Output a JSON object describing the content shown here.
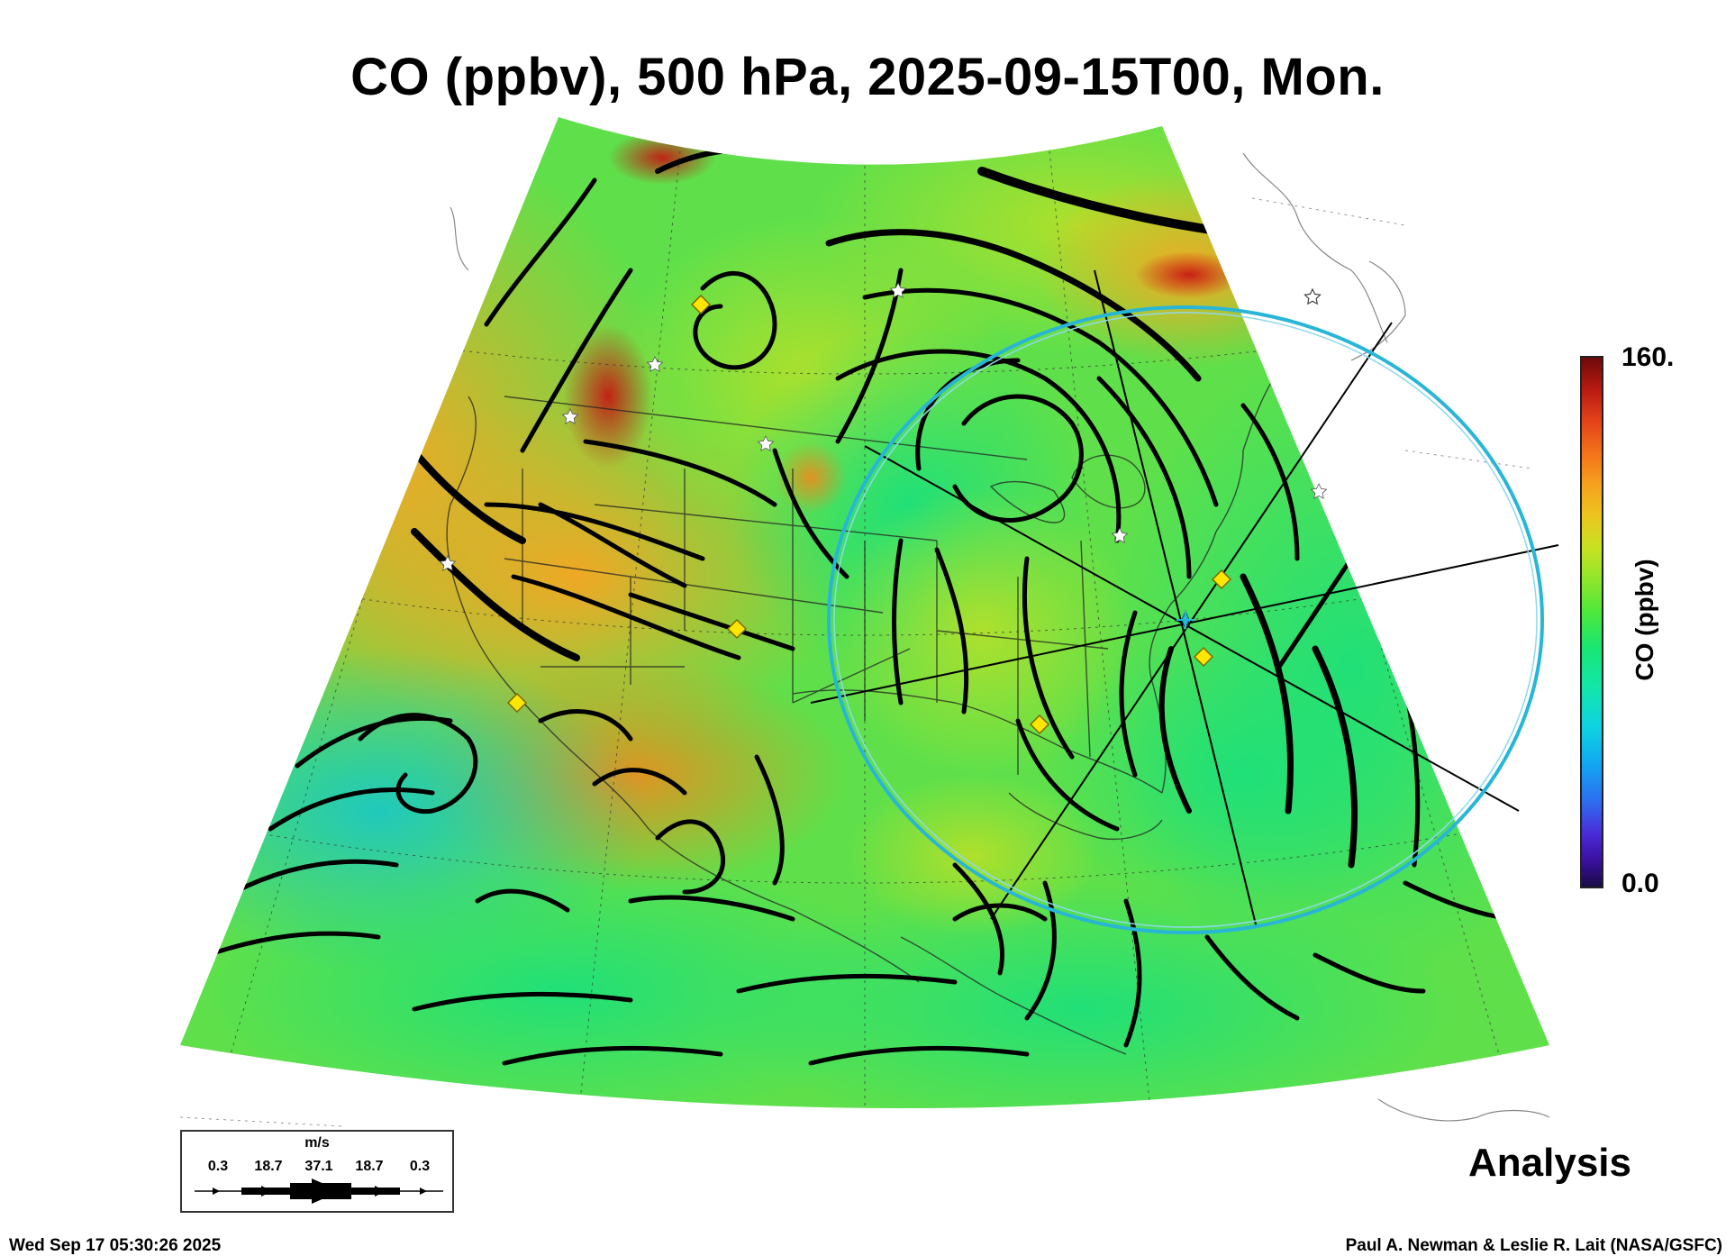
{
  "title": "CO (ppbv), 500 hPa, 2025-09-15T00, Mon.",
  "colorbar": {
    "label": "CO (ppbv)",
    "max_label": "160.",
    "min_label": "0.0",
    "range": [
      0,
      160
    ],
    "colors": [
      "#1a0a45",
      "#4b2bd8",
      "#12a6f2",
      "#18e673",
      "#c8e223",
      "#f6a11e",
      "#e4421a",
      "#6e0a08"
    ]
  },
  "wind_key": {
    "unit": "m/s",
    "labels": [
      "0.3",
      "18.7",
      "37.1",
      "18.7",
      "0.3"
    ]
  },
  "panel_label": "Analysis",
  "timestamp": "Wed Sep 17 05:30:26 2025",
  "credit": "Paul A. Newman & Leslie R. Lait (NASA/GSFC)",
  "map": {
    "projection": "conic, North America",
    "field": "CO mixing ratio at 500 hPa",
    "overlay": "wind streamlines with arrows",
    "circle_color": "#29b6d6",
    "center_marker_color": "#29b6d6",
    "diamond_marker_color": "#ffe600",
    "star_marker_color": "#ffffff"
  }
}
